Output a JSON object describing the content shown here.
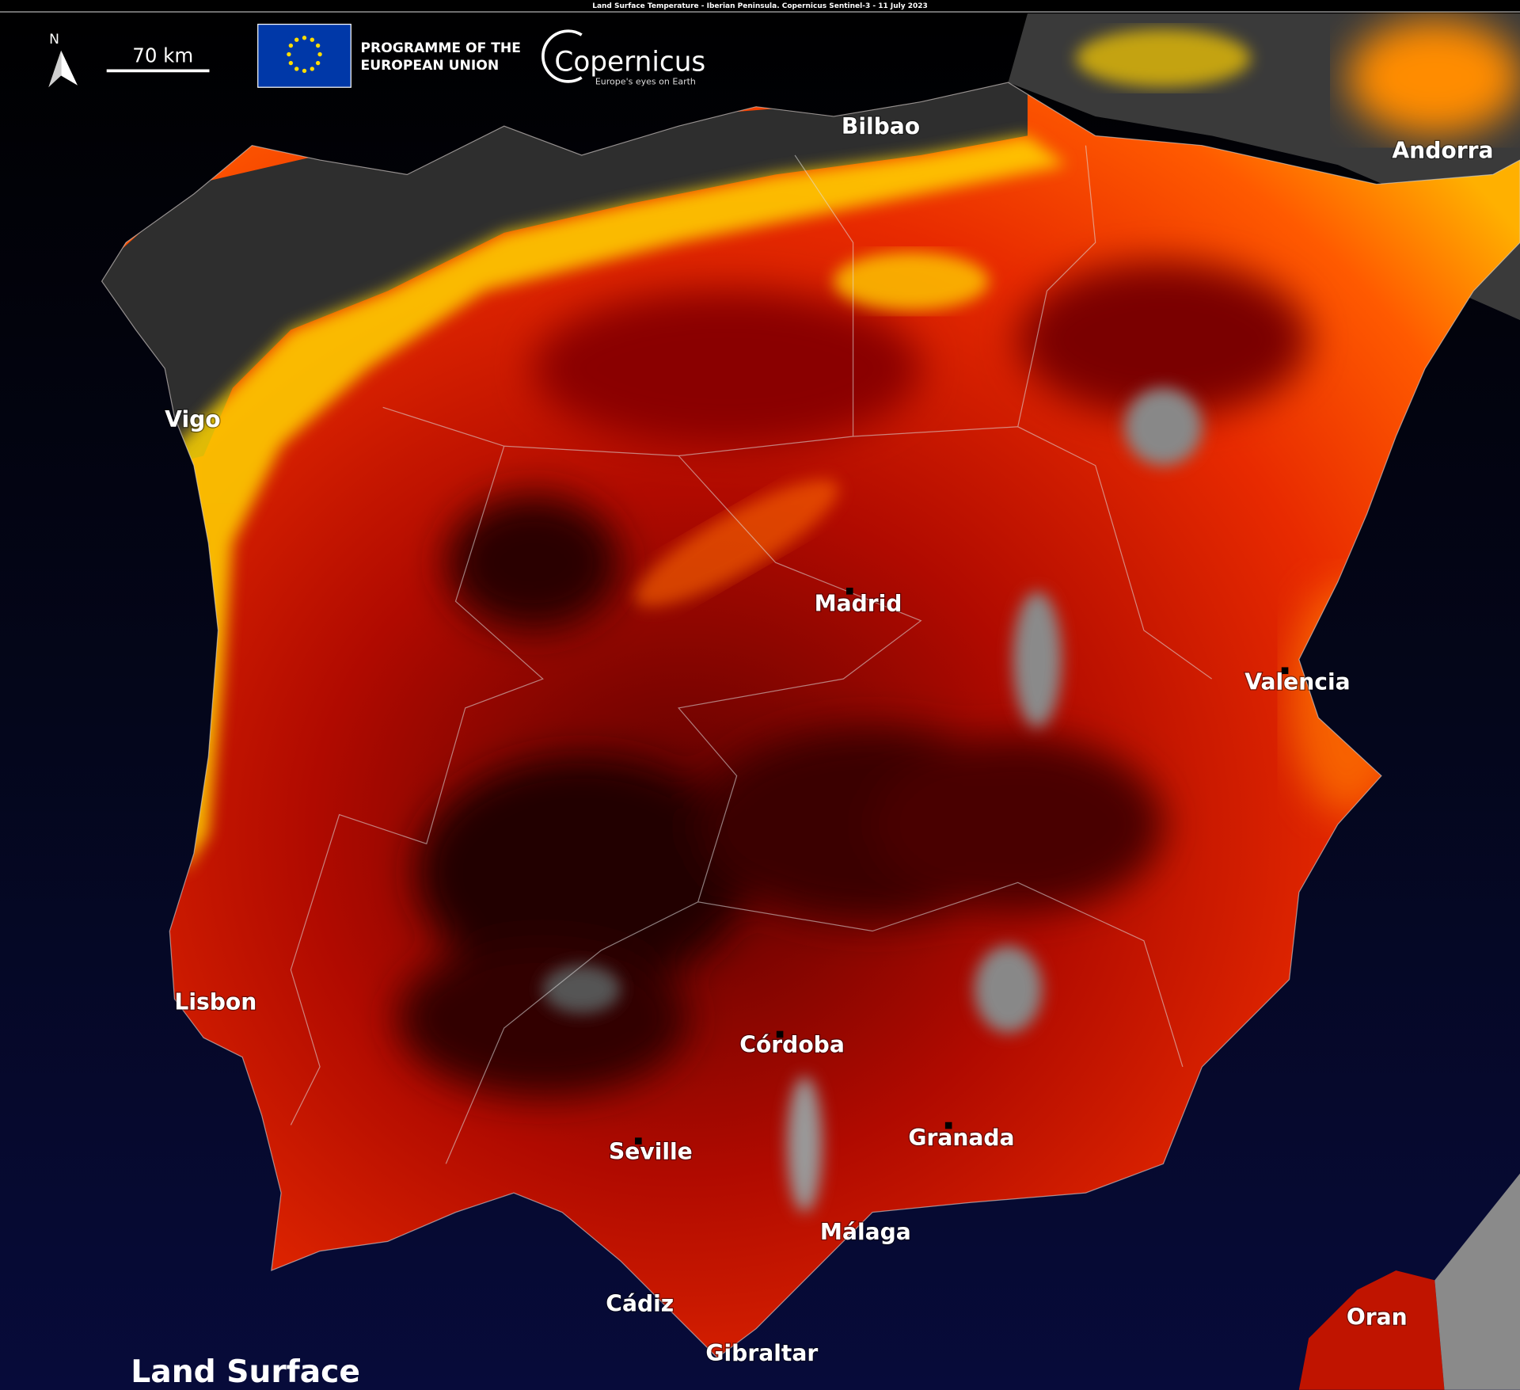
{
  "header": {
    "caption": "Land Surface Temperature - Iberian Peninsula. Copernicus Sentinel-3 - 11 July 2023"
  },
  "north": "N",
  "scale": "70 km",
  "logo": {
    "programme": "PROGRAMME OF THE",
    "union": "EUROPEAN UNION",
    "brand": "Copernicus",
    "tagline": "Europe's eyes on Earth"
  },
  "cities": [
    "Bilbao",
    "Andorra",
    "Vigo",
    "Madrid",
    "Valencia",
    "Lisbon",
    "Córdoba",
    "Seville",
    "Granada",
    "Málaga",
    "Cádiz",
    "Gibraltar",
    "Oran"
  ],
  "title": "Land Surface"
}
